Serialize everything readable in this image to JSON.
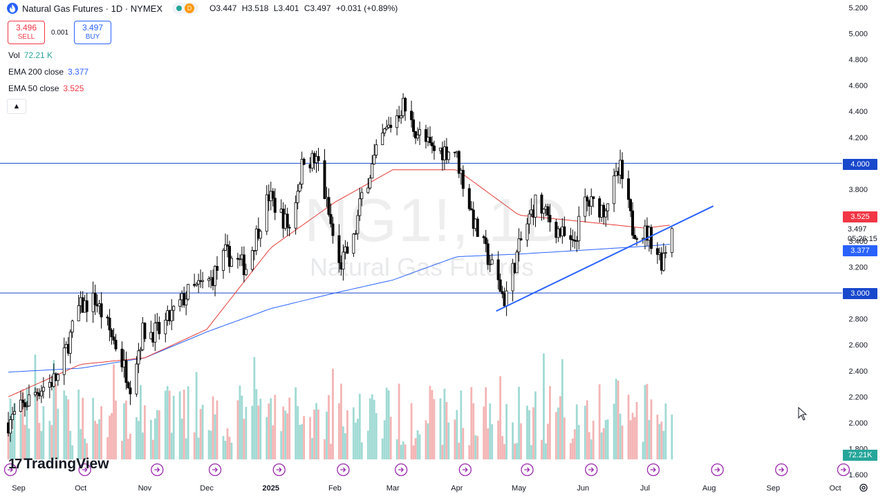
{
  "header": {
    "symbol_title": "Natural Gas Futures · 1D · NYMEX",
    "status_badge": "D",
    "ohlc": {
      "o_label": "O",
      "o": "3.447",
      "h_label": "H",
      "h": "3.518",
      "l_label": "L",
      "l": "3.401",
      "c_label": "C",
      "c": "3.497",
      "change": "+0.031 (+0.89%)"
    }
  },
  "trade": {
    "sell_price": "3.496",
    "sell_label": "SELL",
    "spread": "0.001",
    "buy_price": "3.497",
    "buy_label": "BUY"
  },
  "indicators": [
    {
      "label": "Vol",
      "value": "72.21 K",
      "color": "#26a69a"
    },
    {
      "label": "EMA 200 close",
      "value": "3.377",
      "color": "#2962ff"
    },
    {
      "label": "EMA 50 close",
      "value": "3.525",
      "color": "#f23645"
    }
  ],
  "watermark": {
    "symbol": "NG1!, 1D",
    "description": "Natural Gas Futures"
  },
  "branding": {
    "logo_text": "TradingView",
    "logo_mark": "17"
  },
  "price_labels": {
    "level_4000": "4.000",
    "level_3000": "3.000",
    "ema50": "3.525",
    "last_price": "3.497",
    "countdown": "05:26:15",
    "ema200": "3.377",
    "volume": "72.21K"
  },
  "chart_data": {
    "type": "candlestick",
    "symbol": "NG1!",
    "interval": "1D",
    "y_ticks": [
      "5.200",
      "5.000",
      "4.800",
      "4.600",
      "4.400",
      "4.200",
      "4.000",
      "3.800",
      "3.600",
      "3.400",
      "3.200",
      "3.000",
      "2.800",
      "2.600",
      "2.400",
      "2.200",
      "2.000",
      "1.800",
      "1.600"
    ],
    "ylim": [
      1.6,
      5.2
    ],
    "x_ticks": [
      "Sep",
      "Oct",
      "Nov",
      "Dec",
      "2025",
      "Feb",
      "Mar",
      "Apr",
      "May",
      "Jun",
      "Jul",
      "Aug",
      "Sep",
      "Oct"
    ],
    "x_dates": [
      "2024-09-01",
      "2024-10-01",
      "2024-11-01",
      "2024-12-01",
      "2025-01-01",
      "2025-02-01",
      "2025-03-01",
      "2025-04-01",
      "2025-05-01",
      "2025-06-01",
      "2025-07-01",
      "2025-08-01",
      "2025-09-01",
      "2025-10-01"
    ],
    "price_path": [
      [
        "2024-08-27",
        2.0
      ],
      [
        "2024-09-10",
        2.25
      ],
      [
        "2024-09-20",
        2.35
      ],
      [
        "2024-09-30",
        2.88
      ],
      [
        "2024-10-08",
        2.95
      ],
      [
        "2024-10-18",
        2.6
      ],
      [
        "2024-10-25",
        2.3
      ],
      [
        "2024-10-31",
        2.7
      ],
      [
        "2024-11-08",
        2.7
      ],
      [
        "2024-11-22",
        3.0
      ],
      [
        "2024-12-03",
        3.1
      ],
      [
        "2024-12-10",
        3.3
      ],
      [
        "2024-12-20",
        3.2
      ],
      [
        "2024-12-31",
        3.75
      ],
      [
        "2025-01-10",
        3.5
      ],
      [
        "2025-01-17",
        4.05
      ],
      [
        "2025-01-24",
        4.0
      ],
      [
        "2025-02-03",
        3.2
      ],
      [
        "2025-02-10",
        3.4
      ],
      [
        "2025-02-14",
        3.75
      ],
      [
        "2025-02-24",
        4.2
      ],
      [
        "2025-03-06",
        4.45
      ],
      [
        "2025-03-10",
        4.3
      ],
      [
        "2025-03-20",
        4.1
      ],
      [
        "2025-03-31",
        4.1
      ],
      [
        "2025-04-10",
        3.5
      ],
      [
        "2025-04-18",
        3.2
      ],
      [
        "2025-04-24",
        2.95
      ],
      [
        "2025-05-02",
        3.4
      ],
      [
        "2025-05-09",
        3.7
      ],
      [
        "2025-05-19",
        3.5
      ],
      [
        "2025-05-27",
        3.35
      ],
      [
        "2025-06-02",
        3.7
      ],
      [
        "2025-06-11",
        3.65
      ],
      [
        "2025-06-19",
        3.95
      ],
      [
        "2025-06-25",
        3.5
      ],
      [
        "2025-07-03",
        3.45
      ],
      [
        "2025-07-09",
        3.25
      ],
      [
        "2025-07-14",
        3.497
      ]
    ],
    "ema200": [
      [
        "2024-08-27",
        2.39
      ],
      [
        "2024-10-01",
        2.42
      ],
      [
        "2024-11-01",
        2.5
      ],
      [
        "2024-12-01",
        2.7
      ],
      [
        "2025-01-01",
        2.88
      ],
      [
        "2025-02-01",
        3.0
      ],
      [
        "2025-03-01",
        3.1
      ],
      [
        "2025-04-01",
        3.28
      ],
      [
        "2025-05-01",
        3.3
      ],
      [
        "2025-06-01",
        3.33
      ],
      [
        "2025-07-01",
        3.36
      ],
      [
        "2025-07-14",
        3.377
      ]
    ],
    "ema50": [
      [
        "2024-08-27",
        2.2
      ],
      [
        "2024-10-01",
        2.45
      ],
      [
        "2024-11-01",
        2.5
      ],
      [
        "2024-12-01",
        2.72
      ],
      [
        "2025-01-01",
        3.35
      ],
      [
        "2025-02-01",
        3.7
      ],
      [
        "2025-03-01",
        3.95
      ],
      [
        "2025-04-01",
        3.95
      ],
      [
        "2025-05-01",
        3.6
      ],
      [
        "2025-06-01",
        3.55
      ],
      [
        "2025-07-01",
        3.5
      ],
      [
        "2025-07-14",
        3.525
      ]
    ],
    "horizontal_lines": [
      4.0,
      3.0
    ],
    "trendline": [
      [
        "2025-04-20",
        2.86
      ],
      [
        "2025-08-03",
        3.67
      ]
    ],
    "last_price": 3.497,
    "volume_last": "72.21K"
  }
}
